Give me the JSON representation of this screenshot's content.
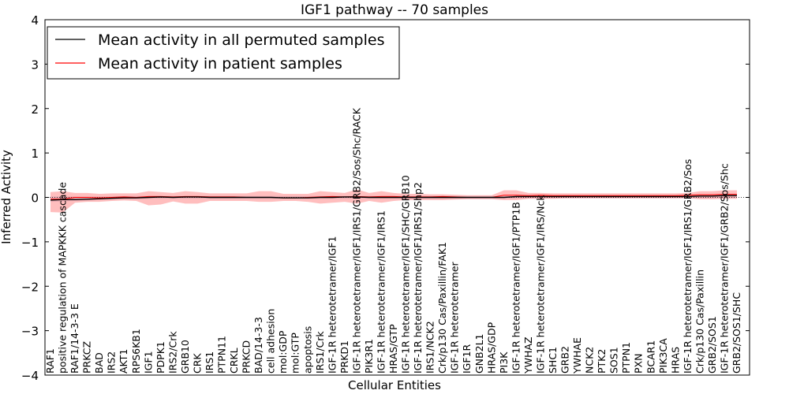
{
  "chart_data": {
    "type": "line",
    "title": "IGF1 pathway -- 70 samples",
    "xlabel": "Cellular Entities",
    "ylabel": "Inferred Activity",
    "ylim": [
      -4,
      4
    ],
    "yticks": [
      "4",
      "3",
      "2",
      "1",
      "0",
      "−1",
      "−2",
      "−3",
      "−4"
    ],
    "ytick_values": [
      4,
      3,
      2,
      1,
      0,
      -1,
      -2,
      -3,
      -4
    ],
    "grid": false,
    "legend_position": "top-left",
    "categories": [
      "RAF1",
      "positive regulation of MAPKKK cascade",
      "RAF1/14-3-3 E",
      "PRKCZ",
      "BAD",
      "IRS2",
      "AKT1",
      "RPS6KB1",
      "IGF1",
      "PDPK1",
      "IRS2/Crk",
      "GRB10",
      "CRK",
      "IRS1",
      "PTPN11",
      "CRKL",
      "PRKCD",
      "BAD/14-3-3",
      "cell adhesion",
      "mol:GDP",
      "mol:GTP",
      "apoptosis",
      "IRS1/Crk",
      "IGF-1R heterotetramer/IGF1",
      "PRKD1",
      "IGF-1R heterotetramer/IGF1/IRS1/GRB2/Sos/Shc/RACK",
      "PIK3R1",
      "IGF-1R heterotetramer/IGF1/IRS1",
      "HRAS/GTP",
      "IGF-1R heterotetramer/IGF1/SHC/GRB10",
      "IGF-1R heterotetramer/IGF1/IRS1/Shp2",
      "IRS1/NCK2",
      "Crk/p130 Cas/Paxillin/FAK1",
      "IGF-1R heterotetramer",
      "IGF1R",
      "GNB2L1",
      "HRAS/GDP",
      "PI3K",
      "IGF-1R heterotetramer/IGF1/PTP1B",
      "YWHAZ",
      "IGF-1R heterotetramer/IGF1/IRS/Nck",
      "SHC1",
      "GRB2",
      "YWHAE",
      "NCK2",
      "PTK2",
      "SOS1",
      "PTPN1",
      "PXN",
      "BCAR1",
      "PIK3CA",
      "HRAS",
      "IGF-1R heterotetramer/IGF1/IRS1/GRB2/Sos",
      "Crk/p130 Cas/Paxillin",
      "GRB2/SOS1",
      "IGF-1R heterotetramer/IGF1/GRB2/Sos/Shc",
      "GRB2/SOS1/SHC"
    ],
    "series": [
      {
        "name": "Mean activity in all permuted samples",
        "color": "#000000",
        "values": [
          -0.06,
          -0.05,
          -0.05,
          -0.04,
          -0.03,
          -0.02,
          -0.01,
          -0.01,
          0.0,
          0.01,
          0.0,
          0.01,
          0.01,
          0.0,
          0.0,
          0.0,
          0.0,
          0.0,
          0.0,
          -0.01,
          -0.01,
          -0.01,
          0.0,
          0.0,
          0.01,
          0.01,
          0.0,
          0.0,
          0.0,
          0.0,
          0.0,
          0.0,
          0.0,
          0.0,
          0.0,
          0.0,
          0.0,
          0.0,
          0.02,
          0.02,
          0.02,
          0.02,
          0.02,
          0.02,
          0.02,
          0.02,
          0.02,
          0.02,
          0.02,
          0.02,
          0.02,
          0.02,
          0.02,
          0.03,
          0.03,
          0.04,
          0.04
        ],
        "band_low": [
          -0.1,
          -0.09,
          -0.08,
          -0.07,
          -0.06,
          -0.05,
          -0.04,
          -0.04,
          -0.03,
          -0.03,
          -0.03,
          -0.03,
          -0.03,
          -0.03,
          -0.03,
          -0.03,
          -0.03,
          -0.03,
          -0.03,
          -0.03,
          -0.03,
          -0.03,
          -0.03,
          -0.03,
          -0.03,
          -0.03,
          -0.03,
          -0.03,
          -0.03,
          -0.03,
          -0.03,
          -0.03,
          -0.03,
          -0.03,
          -0.03,
          -0.03,
          -0.03,
          -0.03,
          -0.02,
          -0.02,
          -0.02,
          -0.02,
          -0.02,
          -0.02,
          -0.02,
          -0.02,
          -0.02,
          -0.02,
          -0.02,
          -0.02,
          -0.02,
          -0.02,
          -0.02,
          -0.02,
          -0.02,
          -0.01,
          -0.01
        ],
        "band_high": [
          0.02,
          0.02,
          0.02,
          0.02,
          0.02,
          0.02,
          0.03,
          0.03,
          0.03,
          0.03,
          0.03,
          0.03,
          0.03,
          0.03,
          0.03,
          0.03,
          0.03,
          0.03,
          0.03,
          0.03,
          0.03,
          0.03,
          0.03,
          0.03,
          0.03,
          0.03,
          0.03,
          0.03,
          0.03,
          0.03,
          0.03,
          0.03,
          0.03,
          0.03,
          0.03,
          0.03,
          0.03,
          0.03,
          0.05,
          0.05,
          0.05,
          0.05,
          0.05,
          0.05,
          0.05,
          0.05,
          0.05,
          0.05,
          0.05,
          0.05,
          0.05,
          0.05,
          0.05,
          0.06,
          0.06,
          0.08,
          0.08
        ]
      },
      {
        "name": "Mean activity in patient samples",
        "color": "#ff0000",
        "values": [
          -0.04,
          -0.04,
          0.0,
          0.0,
          -0.01,
          0.0,
          0.01,
          0.0,
          0.02,
          0.02,
          0.01,
          0.02,
          0.02,
          0.01,
          0.01,
          0.01,
          0.0,
          0.0,
          0.0,
          -0.01,
          -0.01,
          0.0,
          0.01,
          0.02,
          0.01,
          0.02,
          0.01,
          0.02,
          0.02,
          0.01,
          0.01,
          0.01,
          0.02,
          0.01,
          0.0,
          0.0,
          0.0,
          0.05,
          0.05,
          0.04,
          0.05,
          0.04,
          0.04,
          0.04,
          0.04,
          0.04,
          0.04,
          0.04,
          0.04,
          0.04,
          0.04,
          0.04,
          0.05,
          0.06,
          0.06,
          0.07,
          0.07
        ],
        "band_low": [
          -0.33,
          -0.34,
          -0.12,
          -0.1,
          -0.1,
          -0.08,
          -0.07,
          -0.08,
          -0.18,
          -0.16,
          -0.09,
          -0.14,
          -0.14,
          -0.08,
          -0.08,
          -0.08,
          -0.08,
          -0.1,
          -0.1,
          -0.08,
          -0.08,
          -0.1,
          -0.14,
          -0.12,
          -0.1,
          -0.14,
          -0.08,
          -0.12,
          -0.08,
          -0.06,
          -0.06,
          -0.06,
          -0.06,
          -0.05,
          -0.04,
          -0.04,
          -0.04,
          -0.06,
          -0.06,
          -0.03,
          -0.03,
          -0.03,
          -0.02,
          -0.02,
          -0.02,
          -0.02,
          -0.02,
          -0.02,
          -0.02,
          -0.02,
          -0.02,
          -0.02,
          -0.02,
          -0.04,
          -0.04,
          -0.03,
          -0.03
        ],
        "band_high": [
          0.12,
          0.14,
          0.1,
          0.1,
          0.08,
          0.09,
          0.09,
          0.09,
          0.14,
          0.12,
          0.1,
          0.14,
          0.12,
          0.09,
          0.09,
          0.09,
          0.09,
          0.14,
          0.14,
          0.08,
          0.08,
          0.08,
          0.14,
          0.12,
          0.1,
          0.18,
          0.1,
          0.14,
          0.1,
          0.08,
          0.08,
          0.07,
          0.07,
          0.06,
          0.05,
          0.05,
          0.05,
          0.16,
          0.16,
          0.1,
          0.1,
          0.09,
          0.09,
          0.09,
          0.09,
          0.09,
          0.09,
          0.09,
          0.09,
          0.09,
          0.09,
          0.09,
          0.1,
          0.14,
          0.14,
          0.16,
          0.16
        ]
      }
    ]
  }
}
